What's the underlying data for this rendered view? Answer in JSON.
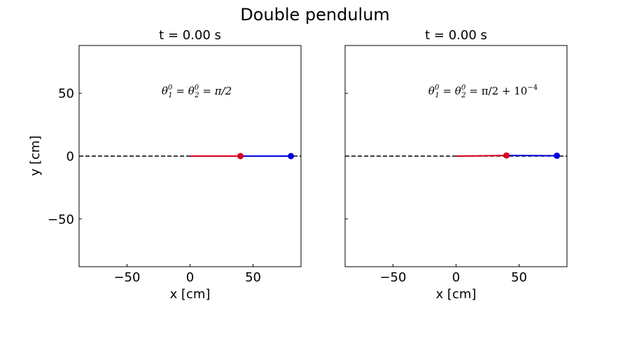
{
  "title": "Double pendulum",
  "chart_data": [
    {
      "type": "line",
      "title": "t = 0.00 s",
      "annotation": {
        "t1": "θ",
        "s1": "0",
        "b1": "1",
        "eq1": " = ",
        "t2": "θ",
        "s2": "0",
        "b2": "2",
        "eq2": " = ",
        "rhs": "π/2",
        "tail_base": "",
        "tail_exp": ""
      },
      "xlabel": "x [cm]",
      "ylabel": "y [cm]",
      "xlim": [
        -88,
        88
      ],
      "ylim": [
        -88,
        88
      ],
      "xticks": [
        -50,
        0,
        50
      ],
      "xtick_labels": [
        "−50",
        "0",
        "50"
      ],
      "yticks": [
        -50,
        0,
        50
      ],
      "ytick_labels": [
        "−50",
        "0",
        "50"
      ],
      "show_ytick_labels": true,
      "pivot": [
        0,
        0
      ],
      "mass1": {
        "x": 40,
        "y": 0,
        "color": "#d7001e"
      },
      "mass2": {
        "x": 80,
        "y": 0,
        "color": "#0000e0"
      },
      "reference_line": {
        "y": 0,
        "style": "dashed",
        "color": "#000000"
      }
    },
    {
      "type": "line",
      "title": "t = 0.00 s",
      "annotation": {
        "t1": "θ",
        "s1": "0",
        "b1": "1",
        "eq1": " = ",
        "t2": "θ",
        "s2": "0",
        "b2": "2",
        "eq2": " = ",
        "rhs": "π/2 + ",
        "tail_base": "10",
        "tail_exp": "−4"
      },
      "xlabel": "x [cm]",
      "ylabel": "",
      "xlim": [
        -88,
        88
      ],
      "ylim": [
        -88,
        88
      ],
      "xticks": [
        -50,
        0,
        50
      ],
      "xtick_labels": [
        "−50",
        "0",
        "50"
      ],
      "yticks": [
        -50,
        0,
        50
      ],
      "ytick_labels": [
        "",
        "",
        ""
      ],
      "show_ytick_labels": false,
      "pivot": [
        0,
        0
      ],
      "mass1": {
        "x": 40,
        "y": 0.5,
        "color": "#d7001e"
      },
      "mass2": {
        "x": 80,
        "y": 0.3,
        "color": "#0000e0"
      },
      "reference_line": {
        "y": 0,
        "style": "dashed",
        "color": "#000000"
      }
    }
  ]
}
